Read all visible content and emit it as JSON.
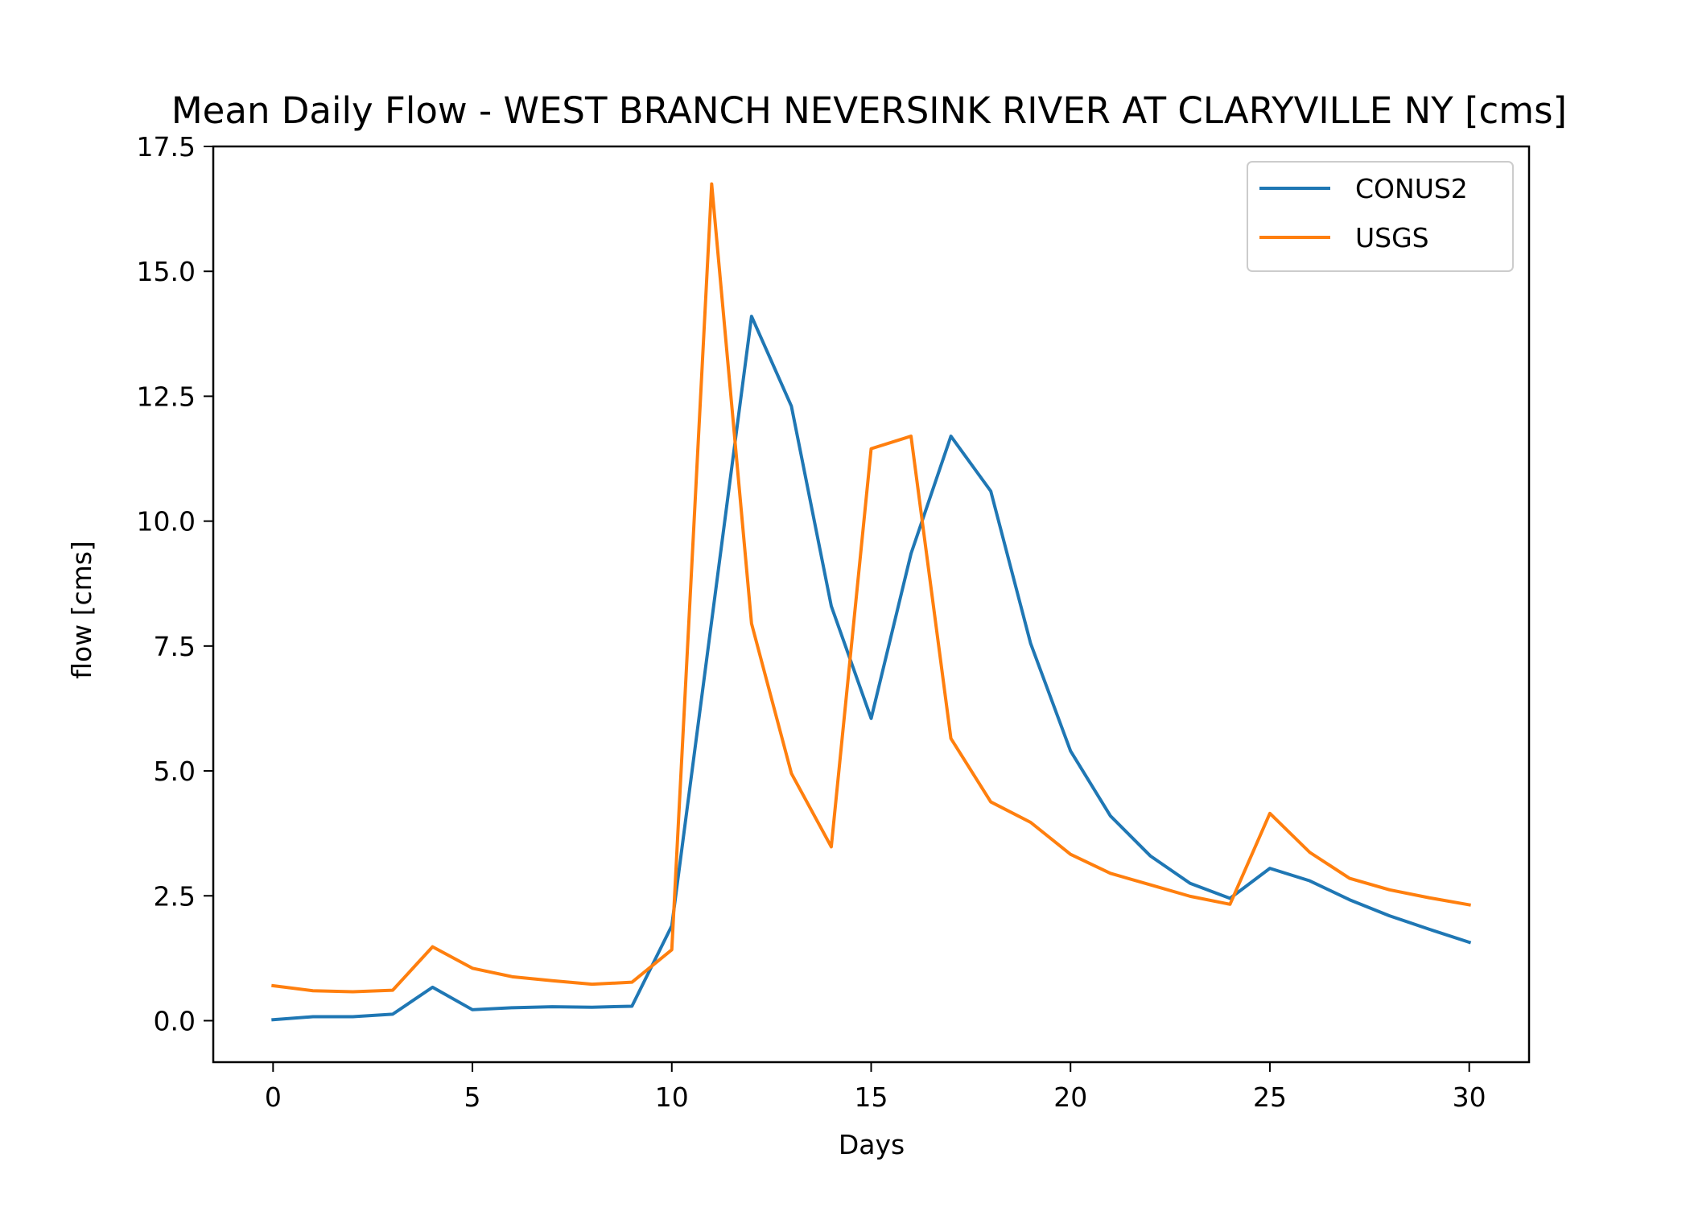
{
  "chart_data": {
    "type": "line",
    "title": "Mean Daily Flow - WEST BRANCH NEVERSINK RIVER AT CLARYVILLE NY [cms]",
    "xlabel": "Days",
    "ylabel": "flow [cms]",
    "xlim": [
      -1.5,
      31.5
    ],
    "ylim": [
      -0.83,
      17.5
    ],
    "xticks": [
      0,
      5,
      10,
      15,
      20,
      25,
      30
    ],
    "yticks": [
      0.0,
      2.5,
      5.0,
      7.5,
      10.0,
      12.5,
      15.0,
      17.5
    ],
    "xtick_labels": [
      "0",
      "5",
      "10",
      "15",
      "20",
      "25",
      "30"
    ],
    "ytick_labels": [
      "0.0",
      "2.5",
      "5.0",
      "7.5",
      "10.0",
      "12.5",
      "15.0",
      "17.5"
    ],
    "grid": false,
    "legend_position": "upper right",
    "x": [
      0,
      1,
      2,
      3,
      4,
      5,
      6,
      7,
      8,
      9,
      10,
      11,
      12,
      13,
      14,
      15,
      16,
      17,
      18,
      19,
      20,
      21,
      22,
      23,
      24,
      25,
      26,
      27,
      28,
      29,
      30
    ],
    "series": [
      {
        "name": "CONUS2",
        "color": "#1f77b4",
        "values": [
          0.02,
          0.08,
          0.08,
          0.13,
          0.67,
          0.22,
          0.26,
          0.28,
          0.27,
          0.29,
          1.9,
          8.0,
          14.1,
          12.3,
          8.3,
          6.05,
          9.35,
          11.7,
          10.6,
          7.55,
          5.4,
          4.1,
          3.3,
          2.75,
          2.45,
          3.05,
          2.8,
          2.42,
          2.1,
          1.83,
          1.57
        ]
      },
      {
        "name": "USGS",
        "color": "#ff7f0e",
        "values": [
          0.7,
          0.6,
          0.58,
          0.61,
          1.48,
          1.05,
          0.88,
          0.8,
          0.73,
          0.77,
          1.42,
          16.75,
          7.95,
          4.95,
          3.48,
          11.45,
          11.7,
          5.65,
          4.38,
          3.97,
          3.33,
          2.95,
          2.72,
          2.49,
          2.33,
          4.15,
          3.37,
          2.85,
          2.62,
          2.46,
          2.32
        ]
      }
    ]
  }
}
